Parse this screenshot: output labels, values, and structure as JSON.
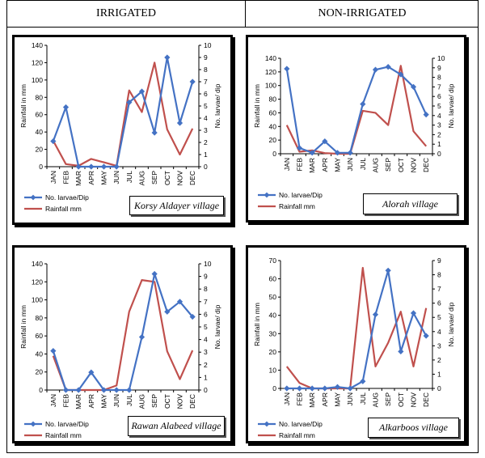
{
  "headers": {
    "left": "IRRIGATED",
    "right": "NON-IRRIGATED"
  },
  "chart_data": [
    {
      "type": "line",
      "village": "Korsy Aldayer village",
      "categories": [
        "JAN",
        "FEB",
        "MAR",
        "APR",
        "MAY",
        "JUN",
        "JUL",
        "AUG",
        "SEP",
        "OCT",
        "NOV",
        "DEC"
      ],
      "ylabel": "Rainfall in mm",
      "y2label": "No. larvae/ dip",
      "ylim": [
        0,
        140
      ],
      "y2lim": [
        0,
        10
      ],
      "series": [
        {
          "name": "No. larvae/Dip",
          "axis": "right",
          "color": "#4472C4",
          "marker": "diamond",
          "values": [
            2.1,
            4.9,
            0,
            0,
            0,
            0,
            5.3,
            6.2,
            2.8,
            9.0,
            3.6,
            7.0
          ]
        },
        {
          "name": "Rainfall mm",
          "axis": "left",
          "color": "#C0504D",
          "values": [
            30,
            3,
            1,
            9,
            5,
            1,
            88,
            63,
            120,
            43,
            14,
            44
          ]
        }
      ],
      "legend": [
        "No. larvae/Dip",
        "Rainfall mm"
      ]
    },
    {
      "type": "line",
      "village": "Alorah village",
      "categories": [
        "JAN",
        "FEB",
        "MAR",
        "APR",
        "MAY",
        "JUN",
        "JUL",
        "AUG",
        "SEP",
        "OCT",
        "NOV",
        "DEC"
      ],
      "ylabel": "Rainfall in mm",
      "y2label": "No. larvae/ dip",
      "ylim": [
        0,
        140
      ],
      "y2lim": [
        0,
        10
      ],
      "series": [
        {
          "name": "No. larvae/Dip",
          "axis": "right",
          "color": "#4472C4",
          "marker": "diamond",
          "values": [
            8.9,
            0.6,
            0.1,
            1.3,
            0.1,
            0.1,
            5.2,
            8.8,
            9.1,
            8.3,
            7.0,
            4.1
          ]
        },
        {
          "name": "Rainfall mm",
          "axis": "left",
          "color": "#C0504D",
          "values": [
            42,
            3,
            5,
            1,
            0,
            0,
            63,
            60,
            42,
            129,
            33,
            11
          ]
        }
      ],
      "legend": [
        "No. larvae/Dip",
        "Rainfall mm"
      ]
    },
    {
      "type": "line",
      "village": "Rawan Alabeed village",
      "categories": [
        "JAN",
        "FEB",
        "MAR",
        "APR",
        "MAY",
        "JUN",
        "JUL",
        "AUG",
        "SEP",
        "OCT",
        "NOV",
        "DEC"
      ],
      "ylabel": "Rainfall in mm",
      "y2label": "No. larvae/ dip",
      "ylim": [
        0,
        140
      ],
      "y2lim": [
        0,
        10
      ],
      "series": [
        {
          "name": "No. larvae/Dip",
          "axis": "right",
          "color": "#4472C4",
          "marker": "diamond",
          "values": [
            3.1,
            0,
            0,
            1.4,
            0,
            0,
            0,
            4.2,
            9.2,
            6.2,
            7.0,
            5.8
          ]
        },
        {
          "name": "Rainfall mm",
          "axis": "left",
          "color": "#C0504D",
          "values": [
            38,
            0,
            0,
            0,
            0,
            5,
            87,
            122,
            120,
            43,
            12,
            44
          ]
        }
      ],
      "legend": [
        "No. larvae/Dip",
        "Rainfall mm"
      ]
    },
    {
      "type": "line",
      "village": "Alkarboos village",
      "categories": [
        "JAN",
        "FEB",
        "MAR",
        "APR",
        "MAY",
        "JUN",
        "JUL",
        "AUG",
        "SEP",
        "OCT",
        "NOV",
        "DEC"
      ],
      "ylabel": "Rainfall in mm",
      "y2label": "No. larvae/ dip",
      "ylim": [
        0,
        70
      ],
      "y2lim": [
        0,
        9
      ],
      "series": [
        {
          "name": "No. larvae/Dip",
          "axis": "right",
          "color": "#4472C4",
          "marker": "diamond",
          "values": [
            0,
            0,
            0,
            0,
            0.1,
            0,
            0.5,
            5.2,
            8.3,
            2.6,
            5.3,
            3.7
          ]
        },
        {
          "name": "Rainfall mm",
          "axis": "left",
          "color": "#C0504D",
          "values": [
            12,
            3,
            0,
            0,
            0,
            0,
            66,
            12,
            25,
            42,
            12,
            44
          ]
        }
      ],
      "legend": [
        "No. larvae/Dip",
        "Rainfall mm"
      ]
    }
  ]
}
